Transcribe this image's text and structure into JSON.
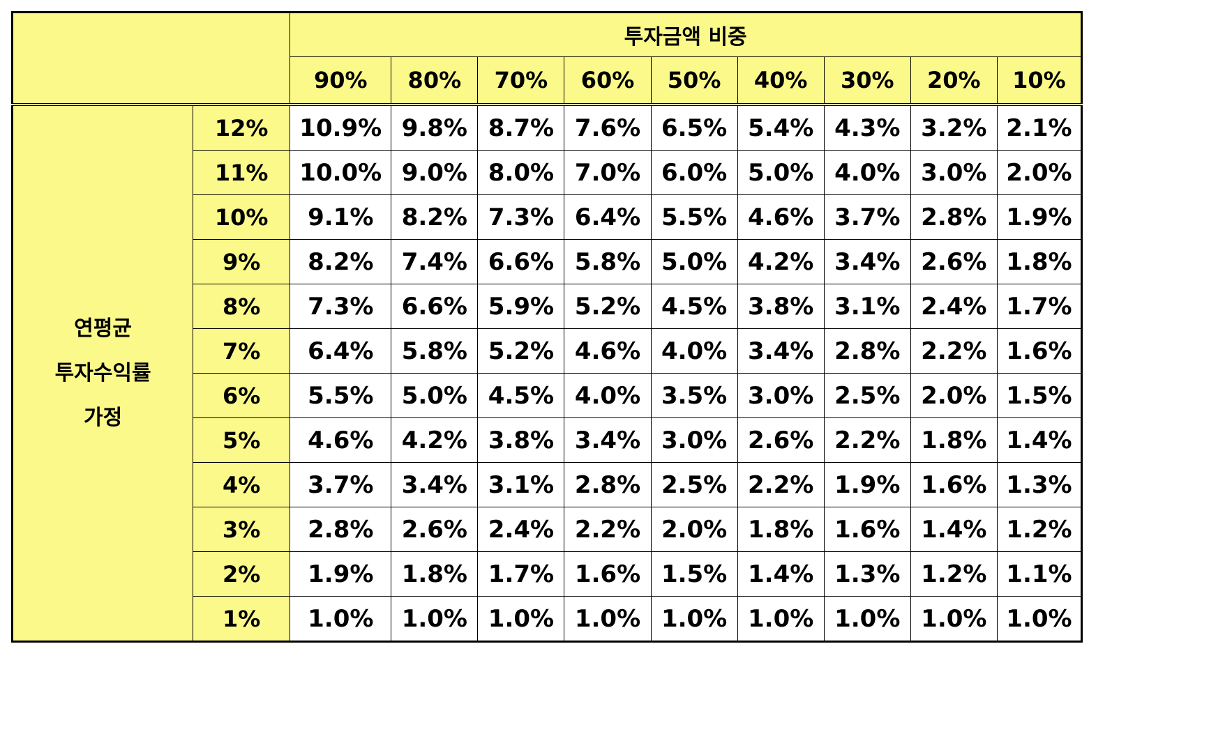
{
  "column_group_title": "투자금액 비중",
  "row_group_title": [
    "연평균",
    "투자수익률",
    "가정"
  ],
  "columns": [
    "90%",
    "80%",
    "70%",
    "60%",
    "50%",
    "40%",
    "30%",
    "20%",
    "10%"
  ],
  "rows": [
    {
      "label": "12%",
      "values": [
        "10.9%",
        "9.8%",
        "8.7%",
        "7.6%",
        "6.5%",
        "5.4%",
        "4.3%",
        "3.2%",
        "2.1%"
      ]
    },
    {
      "label": "11%",
      "values": [
        "10.0%",
        "9.0%",
        "8.0%",
        "7.0%",
        "6.0%",
        "5.0%",
        "4.0%",
        "3.0%",
        "2.0%"
      ]
    },
    {
      "label": "10%",
      "values": [
        "9.1%",
        "8.2%",
        "7.3%",
        "6.4%",
        "5.5%",
        "4.6%",
        "3.7%",
        "2.8%",
        "1.9%"
      ]
    },
    {
      "label": "9%",
      "values": [
        "8.2%",
        "7.4%",
        "6.6%",
        "5.8%",
        "5.0%",
        "4.2%",
        "3.4%",
        "2.6%",
        "1.8%"
      ]
    },
    {
      "label": "8%",
      "values": [
        "7.3%",
        "6.6%",
        "5.9%",
        "5.2%",
        "4.5%",
        "3.8%",
        "3.1%",
        "2.4%",
        "1.7%"
      ]
    },
    {
      "label": "7%",
      "values": [
        "6.4%",
        "5.8%",
        "5.2%",
        "4.6%",
        "4.0%",
        "3.4%",
        "2.8%",
        "2.2%",
        "1.6%"
      ]
    },
    {
      "label": "6%",
      "values": [
        "5.5%",
        "5.0%",
        "4.5%",
        "4.0%",
        "3.5%",
        "3.0%",
        "2.5%",
        "2.0%",
        "1.5%"
      ]
    },
    {
      "label": "5%",
      "values": [
        "4.6%",
        "4.2%",
        "3.8%",
        "3.4%",
        "3.0%",
        "2.6%",
        "2.2%",
        "1.8%",
        "1.4%"
      ]
    },
    {
      "label": "4%",
      "values": [
        "3.7%",
        "3.4%",
        "3.1%",
        "2.8%",
        "2.5%",
        "2.2%",
        "1.9%",
        "1.6%",
        "1.3%"
      ]
    },
    {
      "label": "3%",
      "values": [
        "2.8%",
        "2.6%",
        "2.4%",
        "2.2%",
        "2.0%",
        "1.8%",
        "1.6%",
        "1.4%",
        "1.2%"
      ]
    },
    {
      "label": "2%",
      "values": [
        "1.9%",
        "1.8%",
        "1.7%",
        "1.6%",
        "1.5%",
        "1.4%",
        "1.3%",
        "1.2%",
        "1.1%"
      ]
    },
    {
      "label": "1%",
      "values": [
        "1.0%",
        "1.0%",
        "1.0%",
        "1.0%",
        "1.0%",
        "1.0%",
        "1.0%",
        "1.0%",
        "1.0%"
      ]
    }
  ],
  "colors": {
    "header_fill": "#fbf98a",
    "cell_fill": "#ffffff",
    "border": "#000000"
  }
}
